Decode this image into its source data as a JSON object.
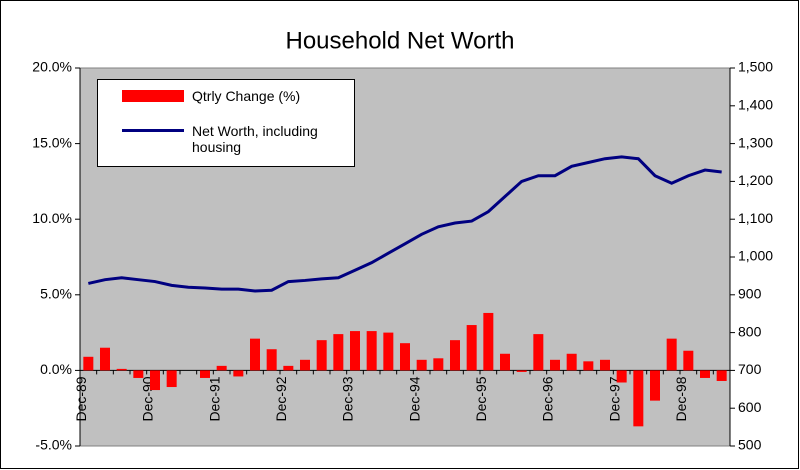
{
  "chart_data": {
    "type": "combo",
    "title": "Household Net Worth",
    "categories": [
      "Dec-89",
      null,
      null,
      null,
      "Dec-90",
      null,
      null,
      null,
      "Dec-91",
      null,
      null,
      null,
      "Dec-92",
      null,
      null,
      null,
      "Dec-93",
      null,
      null,
      null,
      "Dec-94",
      null,
      null,
      null,
      "Dec-95",
      null,
      null,
      null,
      "Dec-96",
      null,
      null,
      null,
      "Dec-97",
      null,
      null,
      null,
      "Dec-98",
      null,
      null
    ],
    "series": [
      {
        "name": "Qtrly Change (%)",
        "type": "bar",
        "color": "#ff0000",
        "values": [
          0.9,
          1.5,
          0.1,
          -0.5,
          -1.3,
          -1.1,
          0,
          -0.5,
          0.3,
          -0.4,
          2.1,
          1.4,
          0.3,
          0.7,
          2.0,
          2.4,
          2.6,
          2.6,
          2.5,
          1.8,
          0.7,
          0.8,
          2.0,
          3.0,
          3.8,
          1.1,
          -0.1,
          2.4,
          0.7,
          1.1,
          0.6,
          0.7,
          -0.8,
          -3.7,
          -2.0,
          2.1,
          1.3,
          -0.5,
          -0.7
        ]
      },
      {
        "name": "Net Worth, including housing",
        "type": "line",
        "color": "#000080",
        "axis": "y2",
        "values": [
          930,
          940,
          945,
          940,
          935,
          925,
          920,
          918,
          915,
          915,
          910,
          912,
          935,
          938,
          942,
          945,
          965,
          985,
          1010,
          1035,
          1060,
          1080,
          1090,
          1095,
          1120,
          1160,
          1200,
          1215,
          1215,
          1240,
          1250,
          1260,
          1265,
          1260,
          1215,
          1195,
          1215,
          1230,
          1225
        ]
      }
    ],
    "ylim": [
      -5,
      20
    ],
    "yticks": [
      {
        "value": -5,
        "label": "-5.0%"
      },
      {
        "value": 0,
        "label": "0.0%"
      },
      {
        "value": 5,
        "label": "5.0%"
      },
      {
        "value": 10,
        "label": "10.0%"
      },
      {
        "value": 15,
        "label": "15.0%"
      },
      {
        "value": 20,
        "label": "20.0%"
      }
    ],
    "y2lim": [
      500,
      1500
    ],
    "y2ticks": [
      500,
      600,
      700,
      800,
      900,
      {
        "value": 1000,
        "label": "1,000"
      },
      {
        "value": 1100,
        "label": "1,100"
      },
      {
        "value": 1200,
        "label": "1,200"
      },
      {
        "value": 1300,
        "label": "1,300"
      },
      {
        "value": 1400,
        "label": "1,400"
      },
      {
        "value": 1500,
        "label": "1,500"
      }
    ],
    "plot_background": "#c0c0c0"
  }
}
